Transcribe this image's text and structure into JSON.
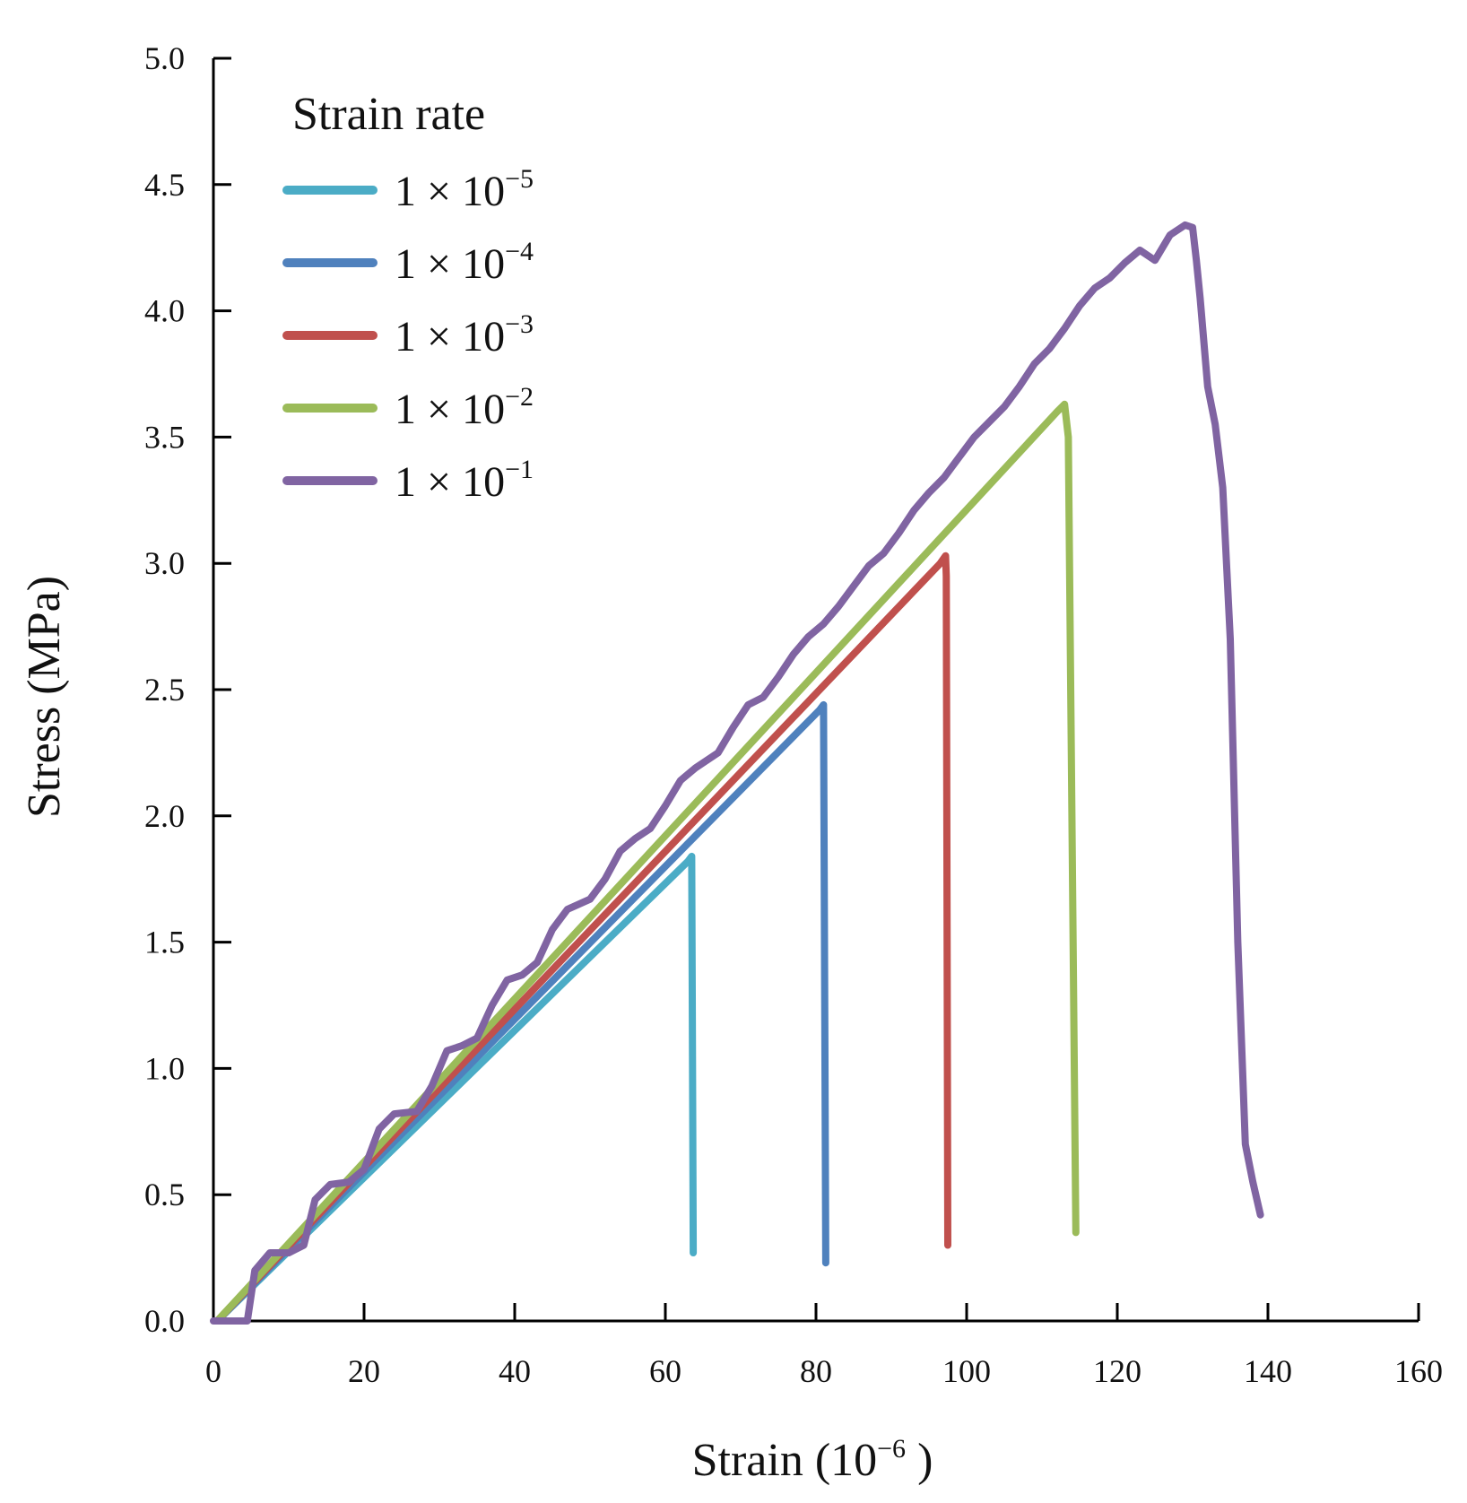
{
  "chart_data": {
    "type": "line",
    "title": "",
    "xlabel": "Strain (10",
    "xlabel_exp": "−6",
    "xlabel_end": " )",
    "ylabel": "Stress (MPa)",
    "xlim": [
      0,
      160
    ],
    "ylim": [
      0,
      5
    ],
    "xticks": [
      0,
      20,
      40,
      60,
      80,
      100,
      120,
      140,
      160
    ],
    "yticks": [
      "0.0",
      "0.5",
      "1.0",
      "1.5",
      "2.0",
      "2.5",
      "3.0",
      "3.5",
      "4.0",
      "4.5",
      "5.0"
    ],
    "legend_title": "Strain rate",
    "legend_position": "top-left",
    "series": [
      {
        "name": "1 × 10",
        "exp": "−5",
        "color": "#4bacc6",
        "points": [
          [
            0.5,
            0
          ],
          [
            63,
            1.82
          ],
          [
            63.5,
            1.84
          ],
          [
            63.7,
            0.27
          ]
        ]
      },
      {
        "name": "1 × 10",
        "exp": "−4",
        "color": "#4f81bd",
        "points": [
          [
            0.5,
            0
          ],
          [
            80.5,
            2.42
          ],
          [
            81,
            2.44
          ],
          [
            81.3,
            0.23
          ]
        ]
      },
      {
        "name": "1 × 10",
        "exp": "−3",
        "color": "#c0504d",
        "points": [
          [
            0.5,
            0
          ],
          [
            96.5,
            3.0
          ],
          [
            97.2,
            3.03
          ],
          [
            97.3,
            2.95
          ],
          [
            97.5,
            0.3
          ]
        ]
      },
      {
        "name": "1 × 10",
        "exp": "−2",
        "color": "#9bbb59",
        "points": [
          [
            0.5,
            0
          ],
          [
            112,
            3.6
          ],
          [
            113,
            3.63
          ],
          [
            113.5,
            3.5
          ],
          [
            114.5,
            0.35
          ]
        ]
      },
      {
        "name": "1 × 10",
        "exp": "−1",
        "color": "#8064a2",
        "points": [
          [
            0,
            0
          ],
          [
            4.5,
            0
          ],
          [
            5.5,
            0.2
          ],
          [
            7.5,
            0.27
          ],
          [
            10,
            0.27
          ],
          [
            12,
            0.3
          ],
          [
            13.5,
            0.48
          ],
          [
            15.5,
            0.54
          ],
          [
            18,
            0.55
          ],
          [
            20,
            0.6
          ],
          [
            22,
            0.76
          ],
          [
            24,
            0.82
          ],
          [
            27,
            0.83
          ],
          [
            29,
            0.93
          ],
          [
            31,
            1.07
          ],
          [
            33,
            1.09
          ],
          [
            35,
            1.12
          ],
          [
            37,
            1.25
          ],
          [
            39,
            1.35
          ],
          [
            41,
            1.37
          ],
          [
            43,
            1.42
          ],
          [
            45,
            1.55
          ],
          [
            47,
            1.63
          ],
          [
            50,
            1.67
          ],
          [
            52,
            1.75
          ],
          [
            54,
            1.86
          ],
          [
            56,
            1.91
          ],
          [
            58,
            1.95
          ],
          [
            60,
            2.04
          ],
          [
            62,
            2.14
          ],
          [
            64,
            2.19
          ],
          [
            67,
            2.25
          ],
          [
            69,
            2.35
          ],
          [
            71,
            2.44
          ],
          [
            73,
            2.47
          ],
          [
            75,
            2.55
          ],
          [
            77,
            2.64
          ],
          [
            79,
            2.71
          ],
          [
            81,
            2.76
          ],
          [
            83,
            2.83
          ],
          [
            85,
            2.91
          ],
          [
            87,
            2.99
          ],
          [
            89,
            3.04
          ],
          [
            91,
            3.12
          ],
          [
            93,
            3.21
          ],
          [
            95,
            3.28
          ],
          [
            97,
            3.34
          ],
          [
            99,
            3.42
          ],
          [
            101,
            3.5
          ],
          [
            103,
            3.56
          ],
          [
            105,
            3.62
          ],
          [
            107,
            3.7
          ],
          [
            109,
            3.79
          ],
          [
            111,
            3.85
          ],
          [
            113,
            3.93
          ],
          [
            115,
            4.02
          ],
          [
            117,
            4.09
          ],
          [
            119,
            4.13
          ],
          [
            121,
            4.19
          ],
          [
            123,
            4.24
          ],
          [
            125,
            4.2
          ],
          [
            127,
            4.3
          ],
          [
            129,
            4.34
          ],
          [
            130,
            4.33
          ],
          [
            130.5,
            4.2
          ],
          [
            131,
            4.05
          ],
          [
            132,
            3.7
          ],
          [
            133,
            3.55
          ],
          [
            134,
            3.3
          ],
          [
            135,
            2.7
          ],
          [
            136,
            1.5
          ],
          [
            137,
            0.7
          ],
          [
            138,
            0.55
          ],
          [
            139,
            0.42
          ]
        ]
      }
    ]
  }
}
